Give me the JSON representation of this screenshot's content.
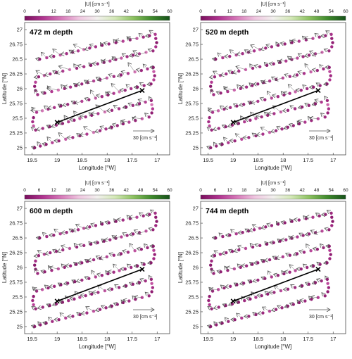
{
  "colorbar": {
    "label": "|U| [cm s⁻¹]",
    "ticks": [
      "0",
      "6",
      "12",
      "18",
      "24",
      "30",
      "36",
      "42",
      "48",
      "54",
      "60"
    ],
    "colors": [
      "#7a0f5e",
      "#b0338f",
      "#d678b8",
      "#efc6e0",
      "#f2f0ee",
      "#d3e8b6",
      "#8cc160",
      "#3f8a2c",
      "#16521a"
    ]
  },
  "axes": {
    "xlabel": "Longitude [°W]",
    "ylabel": "Latitude [°N]",
    "xticks": [
      "19.5",
      "19",
      "18.5",
      "18",
      "17.5",
      "17"
    ],
    "yticks": [
      "27",
      "26.75",
      "26.5",
      "26.25",
      "26",
      "25.75",
      "25.5",
      "25.25",
      "25"
    ]
  },
  "scale_label": "30 [cm s⁻¹]",
  "panels": [
    {
      "label": "472 m depth"
    },
    {
      "label": "520 m depth"
    },
    {
      "label": "600 m depth"
    },
    {
      "label": "744 m depth"
    }
  ],
  "chart_data": {
    "type": "scatter",
    "description_of_fields": "",
    "xlim": [
      -19.65,
      -16.75
    ],
    "ylim": [
      24.88,
      27.12
    ],
    "color_range": [
      0,
      60
    ],
    "transect_line": {
      "x": [
        -19.0,
        -17.3
      ],
      "y": [
        25.43,
        25.97
      ]
    },
    "vector_scale_cm_s": 30,
    "series": [
      {
        "name": "472 m depth",
        "speeds": [
          2,
          5,
          3,
          9,
          4,
          12,
          6,
          3,
          8,
          15,
          5,
          7
        ]
      },
      {
        "name": "520 m depth",
        "speeds": [
          3,
          4,
          2,
          8,
          5,
          10,
          6,
          4,
          7,
          13,
          5,
          6
        ]
      },
      {
        "name": "600 m depth",
        "speeds": [
          2,
          3,
          2,
          6,
          4,
          9,
          5,
          3,
          6,
          11,
          4,
          5
        ]
      },
      {
        "name": "744 m depth",
        "speeds": [
          2,
          3,
          2,
          5,
          3,
          8,
          4,
          3,
          5,
          10,
          4,
          5
        ]
      }
    ]
  }
}
